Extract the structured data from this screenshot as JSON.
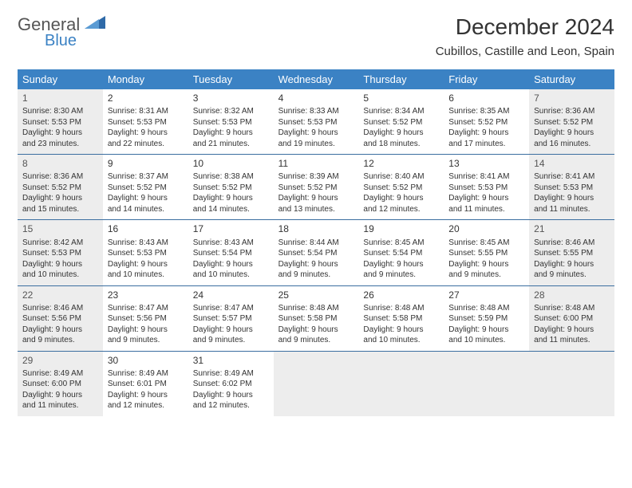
{
  "logo": {
    "text1": "General",
    "text2": "Blue"
  },
  "title": "December 2024",
  "location": "Cubillos, Castille and Leon, Spain",
  "colors": {
    "header_bg": "#3b82c4",
    "header_text": "#ffffff",
    "shaded_bg": "#ededed",
    "border": "#3b6ea0",
    "text": "#333333"
  },
  "day_names": [
    "Sunday",
    "Monday",
    "Tuesday",
    "Wednesday",
    "Thursday",
    "Friday",
    "Saturday"
  ],
  "weeks": [
    [
      {
        "n": "1",
        "shaded": true,
        "sr": "Sunrise: 8:30 AM",
        "ss": "Sunset: 5:53 PM",
        "d1": "Daylight: 9 hours",
        "d2": "and 23 minutes."
      },
      {
        "n": "2",
        "sr": "Sunrise: 8:31 AM",
        "ss": "Sunset: 5:53 PM",
        "d1": "Daylight: 9 hours",
        "d2": "and 22 minutes."
      },
      {
        "n": "3",
        "sr": "Sunrise: 8:32 AM",
        "ss": "Sunset: 5:53 PM",
        "d1": "Daylight: 9 hours",
        "d2": "and 21 minutes."
      },
      {
        "n": "4",
        "sr": "Sunrise: 8:33 AM",
        "ss": "Sunset: 5:53 PM",
        "d1": "Daylight: 9 hours",
        "d2": "and 19 minutes."
      },
      {
        "n": "5",
        "sr": "Sunrise: 8:34 AM",
        "ss": "Sunset: 5:52 PM",
        "d1": "Daylight: 9 hours",
        "d2": "and 18 minutes."
      },
      {
        "n": "6",
        "sr": "Sunrise: 8:35 AM",
        "ss": "Sunset: 5:52 PM",
        "d1": "Daylight: 9 hours",
        "d2": "and 17 minutes."
      },
      {
        "n": "7",
        "shaded": true,
        "sr": "Sunrise: 8:36 AM",
        "ss": "Sunset: 5:52 PM",
        "d1": "Daylight: 9 hours",
        "d2": "and 16 minutes."
      }
    ],
    [
      {
        "n": "8",
        "shaded": true,
        "sr": "Sunrise: 8:36 AM",
        "ss": "Sunset: 5:52 PM",
        "d1": "Daylight: 9 hours",
        "d2": "and 15 minutes."
      },
      {
        "n": "9",
        "sr": "Sunrise: 8:37 AM",
        "ss": "Sunset: 5:52 PM",
        "d1": "Daylight: 9 hours",
        "d2": "and 14 minutes."
      },
      {
        "n": "10",
        "sr": "Sunrise: 8:38 AM",
        "ss": "Sunset: 5:52 PM",
        "d1": "Daylight: 9 hours",
        "d2": "and 14 minutes."
      },
      {
        "n": "11",
        "sr": "Sunrise: 8:39 AM",
        "ss": "Sunset: 5:52 PM",
        "d1": "Daylight: 9 hours",
        "d2": "and 13 minutes."
      },
      {
        "n": "12",
        "sr": "Sunrise: 8:40 AM",
        "ss": "Sunset: 5:52 PM",
        "d1": "Daylight: 9 hours",
        "d2": "and 12 minutes."
      },
      {
        "n": "13",
        "sr": "Sunrise: 8:41 AM",
        "ss": "Sunset: 5:53 PM",
        "d1": "Daylight: 9 hours",
        "d2": "and 11 minutes."
      },
      {
        "n": "14",
        "shaded": true,
        "sr": "Sunrise: 8:41 AM",
        "ss": "Sunset: 5:53 PM",
        "d1": "Daylight: 9 hours",
        "d2": "and 11 minutes."
      }
    ],
    [
      {
        "n": "15",
        "shaded": true,
        "sr": "Sunrise: 8:42 AM",
        "ss": "Sunset: 5:53 PM",
        "d1": "Daylight: 9 hours",
        "d2": "and 10 minutes."
      },
      {
        "n": "16",
        "sr": "Sunrise: 8:43 AM",
        "ss": "Sunset: 5:53 PM",
        "d1": "Daylight: 9 hours",
        "d2": "and 10 minutes."
      },
      {
        "n": "17",
        "sr": "Sunrise: 8:43 AM",
        "ss": "Sunset: 5:54 PM",
        "d1": "Daylight: 9 hours",
        "d2": "and 10 minutes."
      },
      {
        "n": "18",
        "sr": "Sunrise: 8:44 AM",
        "ss": "Sunset: 5:54 PM",
        "d1": "Daylight: 9 hours",
        "d2": "and 9 minutes."
      },
      {
        "n": "19",
        "sr": "Sunrise: 8:45 AM",
        "ss": "Sunset: 5:54 PM",
        "d1": "Daylight: 9 hours",
        "d2": "and 9 minutes."
      },
      {
        "n": "20",
        "sr": "Sunrise: 8:45 AM",
        "ss": "Sunset: 5:55 PM",
        "d1": "Daylight: 9 hours",
        "d2": "and 9 minutes."
      },
      {
        "n": "21",
        "shaded": true,
        "sr": "Sunrise: 8:46 AM",
        "ss": "Sunset: 5:55 PM",
        "d1": "Daylight: 9 hours",
        "d2": "and 9 minutes."
      }
    ],
    [
      {
        "n": "22",
        "shaded": true,
        "sr": "Sunrise: 8:46 AM",
        "ss": "Sunset: 5:56 PM",
        "d1": "Daylight: 9 hours",
        "d2": "and 9 minutes."
      },
      {
        "n": "23",
        "sr": "Sunrise: 8:47 AM",
        "ss": "Sunset: 5:56 PM",
        "d1": "Daylight: 9 hours",
        "d2": "and 9 minutes."
      },
      {
        "n": "24",
        "sr": "Sunrise: 8:47 AM",
        "ss": "Sunset: 5:57 PM",
        "d1": "Daylight: 9 hours",
        "d2": "and 9 minutes."
      },
      {
        "n": "25",
        "sr": "Sunrise: 8:48 AM",
        "ss": "Sunset: 5:58 PM",
        "d1": "Daylight: 9 hours",
        "d2": "and 9 minutes."
      },
      {
        "n": "26",
        "sr": "Sunrise: 8:48 AM",
        "ss": "Sunset: 5:58 PM",
        "d1": "Daylight: 9 hours",
        "d2": "and 10 minutes."
      },
      {
        "n": "27",
        "sr": "Sunrise: 8:48 AM",
        "ss": "Sunset: 5:59 PM",
        "d1": "Daylight: 9 hours",
        "d2": "and 10 minutes."
      },
      {
        "n": "28",
        "shaded": true,
        "sr": "Sunrise: 8:48 AM",
        "ss": "Sunset: 6:00 PM",
        "d1": "Daylight: 9 hours",
        "d2": "and 11 minutes."
      }
    ],
    [
      {
        "n": "29",
        "shaded": true,
        "sr": "Sunrise: 8:49 AM",
        "ss": "Sunset: 6:00 PM",
        "d1": "Daylight: 9 hours",
        "d2": "and 11 minutes."
      },
      {
        "n": "30",
        "sr": "Sunrise: 8:49 AM",
        "ss": "Sunset: 6:01 PM",
        "d1": "Daylight: 9 hours",
        "d2": "and 12 minutes."
      },
      {
        "n": "31",
        "sr": "Sunrise: 8:49 AM",
        "ss": "Sunset: 6:02 PM",
        "d1": "Daylight: 9 hours",
        "d2": "and 12 minutes."
      },
      {
        "empty": true
      },
      {
        "empty": true
      },
      {
        "empty": true
      },
      {
        "empty": true
      }
    ]
  ]
}
